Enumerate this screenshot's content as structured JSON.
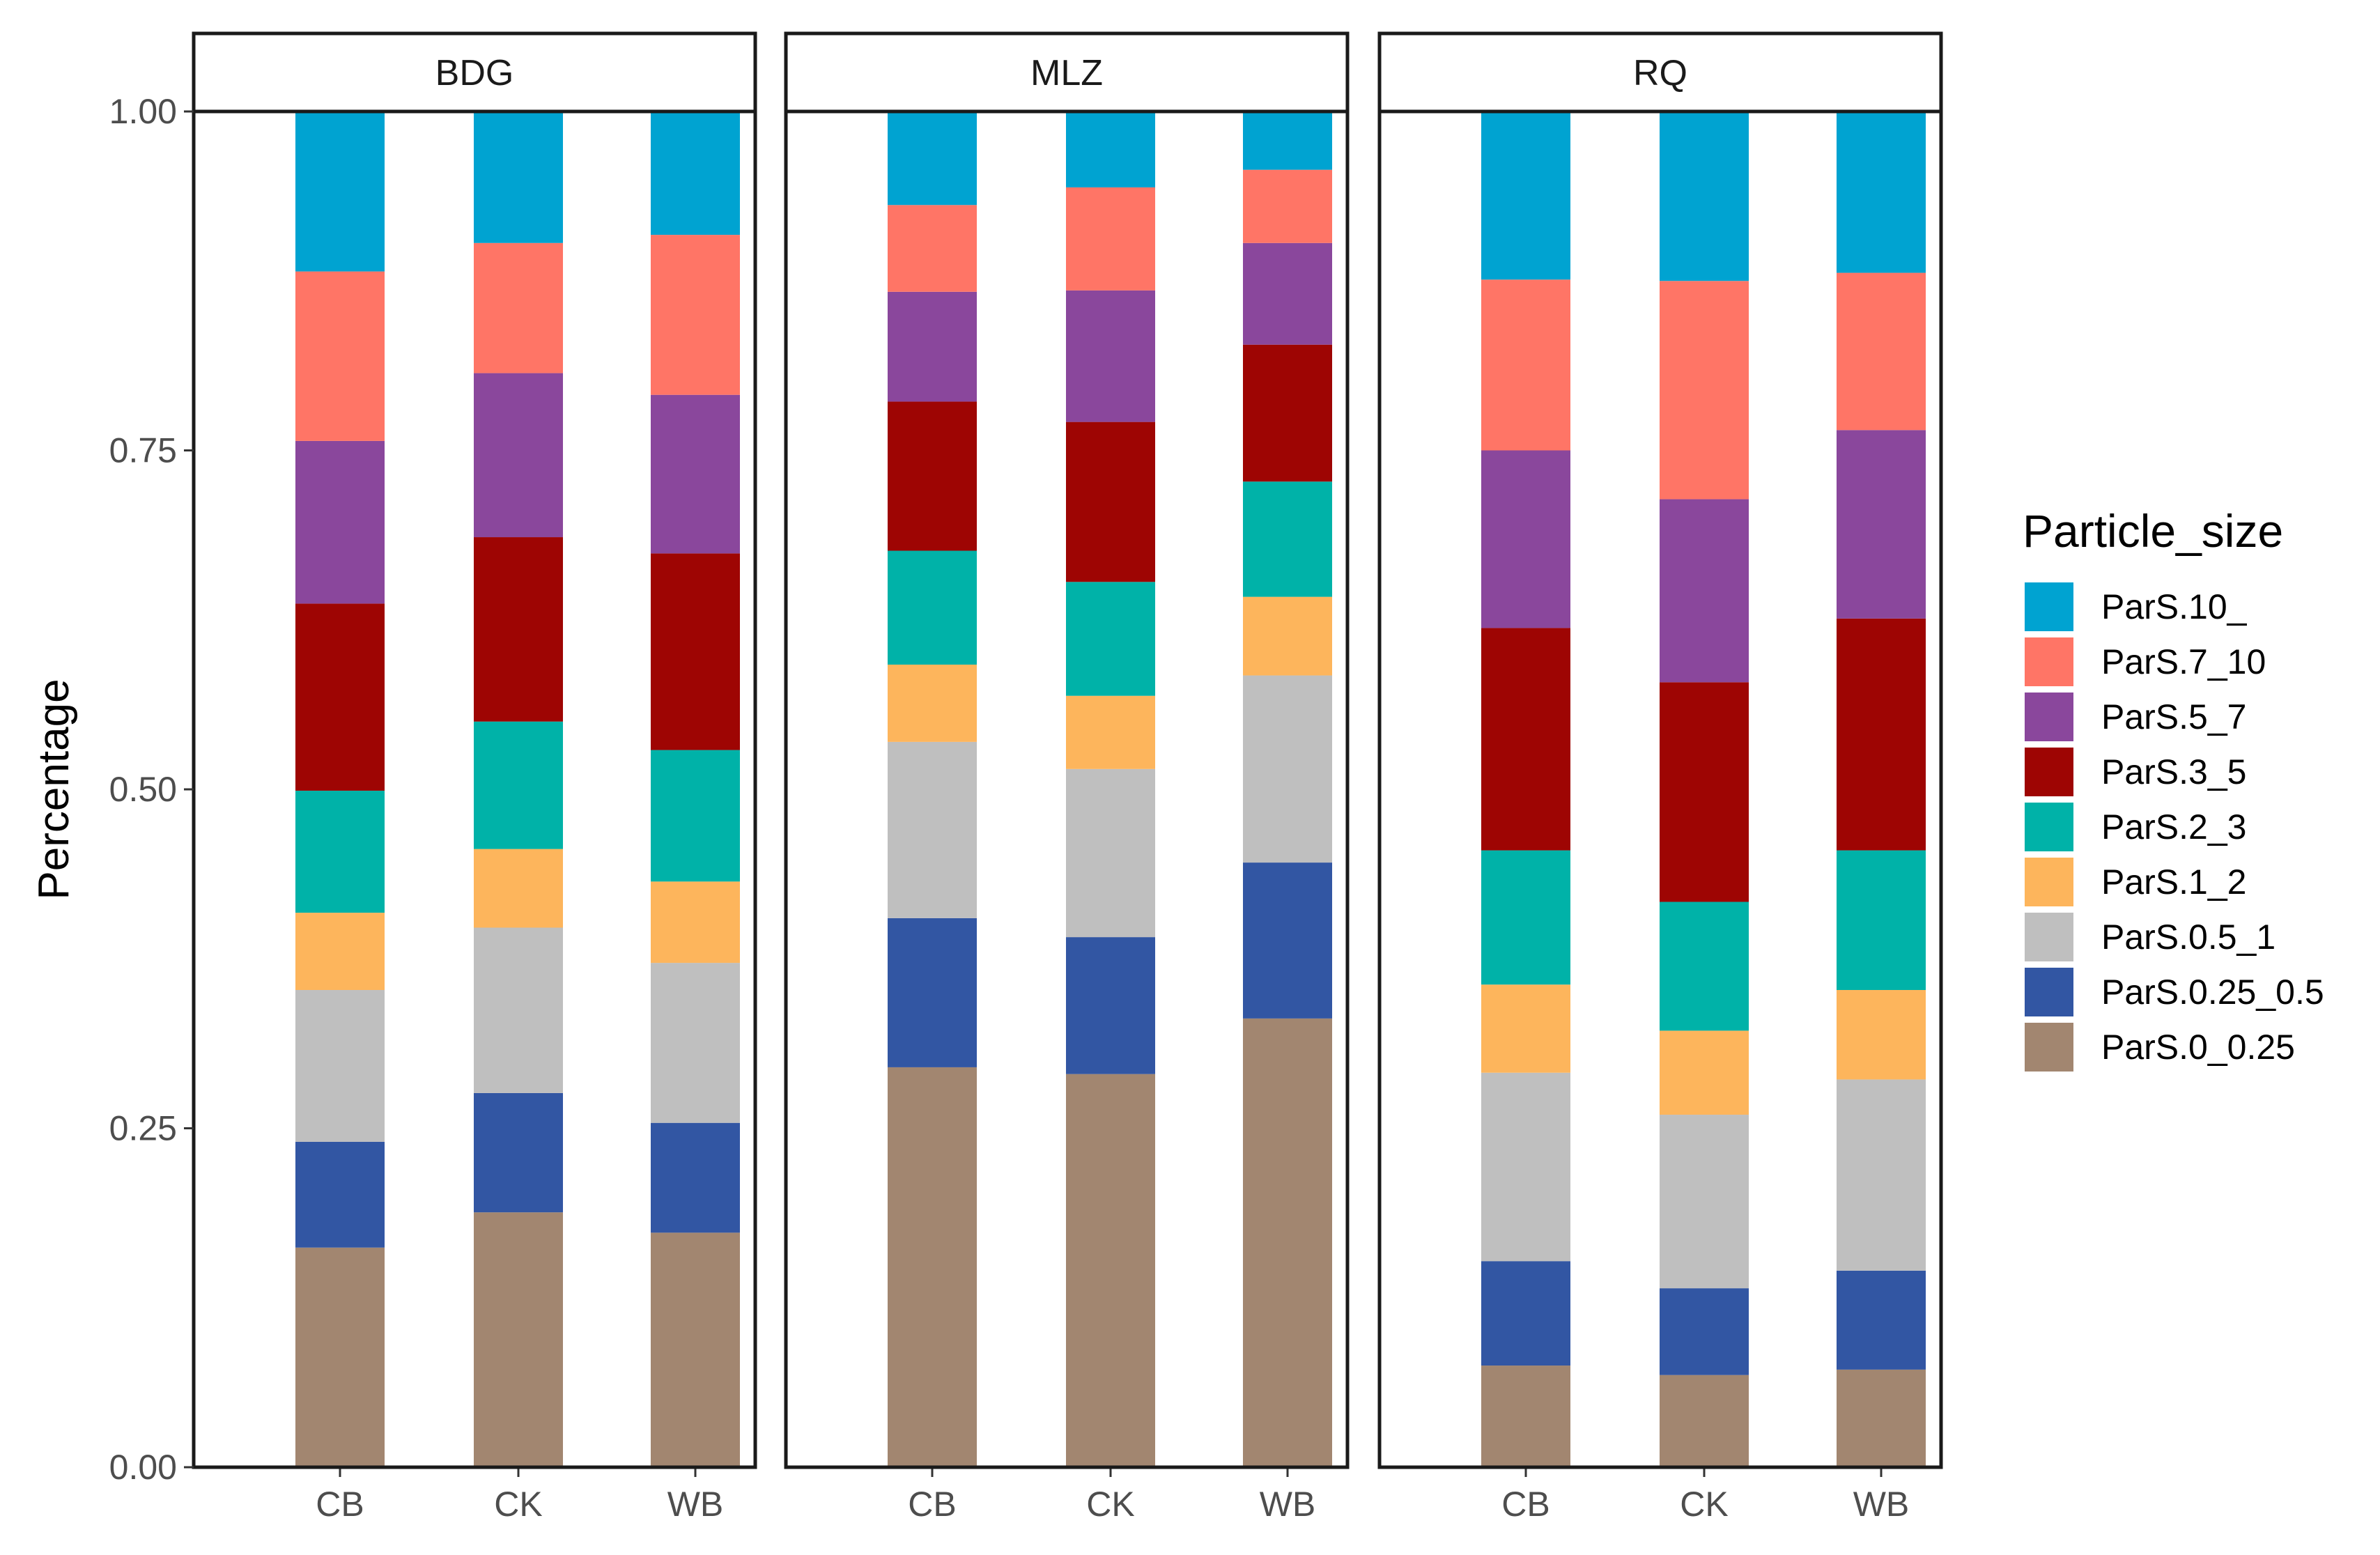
{
  "chart_data": {
    "type": "bar",
    "stacked": true,
    "ylabel": "Percentage",
    "xlabel": "",
    "ylim": [
      0,
      1
    ],
    "y_ticks": [
      "0.00",
      "0.25",
      "0.50",
      "0.75",
      "1.00"
    ],
    "categories": [
      "CB",
      "CK",
      "WB"
    ],
    "legend_title": "Particle_size",
    "legend_position": "right",
    "series": [
      {
        "name": "ParS.10_",
        "color": "#00A3D1"
      },
      {
        "name": "ParS.7_10",
        "color": "#FF7566"
      },
      {
        "name": "ParS.5_7",
        "color": "#8A479C"
      },
      {
        "name": "ParS.3_5",
        "color": "#9E0503"
      },
      {
        "name": "ParS.2_3",
        "color": "#00B2A8"
      },
      {
        "name": "ParS.1_2",
        "color": "#FDB55C"
      },
      {
        "name": "ParS.0.5_1",
        "color": "#BFBFBF"
      },
      {
        "name": "ParS.0.25_0.5",
        "color": "#3256A3"
      },
      {
        "name": "ParS.0_0.25",
        "color": "#A28670"
      }
    ],
    "stack_order_bottom_to_top": [
      "ParS.0_0.25",
      "ParS.0.25_0.5",
      "ParS.0.5_1",
      "ParS.1_2",
      "ParS.2_3",
      "ParS.3_5",
      "ParS.5_7",
      "ParS.7_10",
      "ParS.10_"
    ],
    "panels": [
      {
        "label": "BDG",
        "bars": {
          "CB": [
            0.162,
            0.078,
            0.112,
            0.057,
            0.09,
            0.138,
            0.12,
            0.125,
            0.118
          ],
          "CK": [
            0.188,
            0.088,
            0.122,
            0.058,
            0.094,
            0.136,
            0.121,
            0.096,
            0.097
          ],
          "WB": [
            0.173,
            0.081,
            0.118,
            0.06,
            0.097,
            0.145,
            0.117,
            0.118,
            0.091
          ]
        }
      },
      {
        "label": "MLZ",
        "bars": {
          "CB": [
            0.295,
            0.11,
            0.13,
            0.057,
            0.084,
            0.11,
            0.081,
            0.064,
            0.069
          ],
          "CK": [
            0.29,
            0.101,
            0.124,
            0.054,
            0.084,
            0.118,
            0.097,
            0.076,
            0.056
          ],
          "WB": [
            0.331,
            0.115,
            0.138,
            0.058,
            0.085,
            0.101,
            0.075,
            0.054,
            0.043
          ]
        }
      },
      {
        "label": "RQ",
        "bars": {
          "CB": [
            0.075,
            0.077,
            0.139,
            0.065,
            0.099,
            0.164,
            0.131,
            0.126,
            0.124
          ],
          "CK": [
            0.068,
            0.064,
            0.128,
            0.062,
            0.095,
            0.162,
            0.135,
            0.161,
            0.125
          ],
          "WB": [
            0.072,
            0.073,
            0.141,
            0.066,
            0.103,
            0.171,
            0.139,
            0.116,
            0.119
          ]
        }
      }
    ]
  }
}
